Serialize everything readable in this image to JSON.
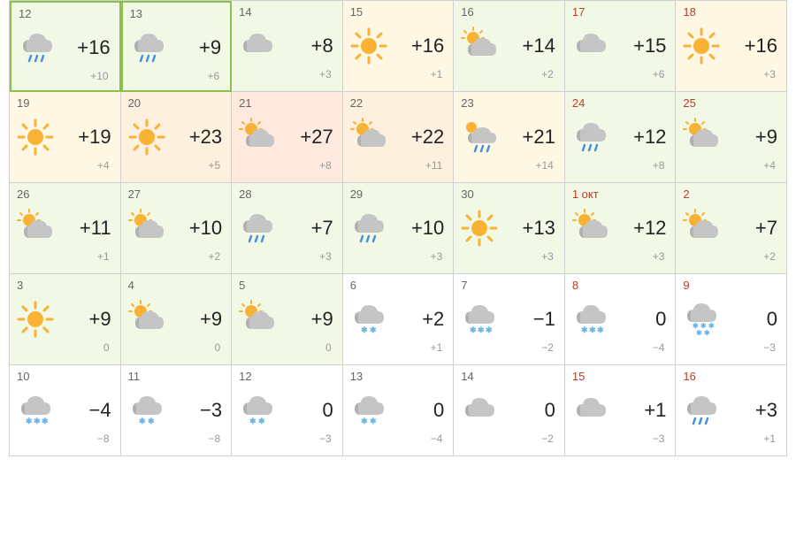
{
  "days": [
    {
      "date": "12",
      "weekend": false,
      "high": "+16",
      "low": "+10",
      "icon": "cloud-rain",
      "bg": "green",
      "today": true
    },
    {
      "date": "13",
      "weekend": false,
      "high": "+9",
      "low": "+6",
      "icon": "cloud-rain",
      "bg": "green",
      "today": true
    },
    {
      "date": "14",
      "weekend": false,
      "high": "+8",
      "low": "+3",
      "icon": "cloud",
      "bg": "green",
      "today": false
    },
    {
      "date": "15",
      "weekend": false,
      "high": "+16",
      "low": "+1",
      "icon": "sun",
      "bg": "yellow",
      "today": false
    },
    {
      "date": "16",
      "weekend": false,
      "high": "+14",
      "low": "+2",
      "icon": "partly",
      "bg": "green",
      "today": false
    },
    {
      "date": "17",
      "weekend": true,
      "high": "+15",
      "low": "+6",
      "icon": "cloud",
      "bg": "green",
      "today": false
    },
    {
      "date": "18",
      "weekend": true,
      "high": "+16",
      "low": "+3",
      "icon": "sun",
      "bg": "yellow",
      "today": false
    },
    {
      "date": "19",
      "weekend": false,
      "high": "+19",
      "low": "+4",
      "icon": "sun",
      "bg": "yellow",
      "today": false
    },
    {
      "date": "20",
      "weekend": false,
      "high": "+23",
      "low": "+5",
      "icon": "sun",
      "bg": "orange",
      "today": false
    },
    {
      "date": "21",
      "weekend": false,
      "high": "+27",
      "low": "+8",
      "icon": "partly",
      "bg": "red",
      "today": false
    },
    {
      "date": "22",
      "weekend": false,
      "high": "+22",
      "low": "+11",
      "icon": "partly",
      "bg": "orange",
      "today": false
    },
    {
      "date": "23",
      "weekend": false,
      "high": "+21",
      "low": "+14",
      "icon": "partly-rain",
      "bg": "yellow",
      "today": false
    },
    {
      "date": "24",
      "weekend": true,
      "high": "+12",
      "low": "+8",
      "icon": "cloud-rain",
      "bg": "green",
      "today": false
    },
    {
      "date": "25",
      "weekend": true,
      "high": "+9",
      "low": "+4",
      "icon": "partly",
      "bg": "green",
      "today": false
    },
    {
      "date": "26",
      "weekend": false,
      "high": "+11",
      "low": "+1",
      "icon": "partly",
      "bg": "green",
      "today": false
    },
    {
      "date": "27",
      "weekend": false,
      "high": "+10",
      "low": "+2",
      "icon": "partly",
      "bg": "green",
      "today": false
    },
    {
      "date": "28",
      "weekend": false,
      "high": "+7",
      "low": "+3",
      "icon": "cloud-rain",
      "bg": "green",
      "today": false
    },
    {
      "date": "29",
      "weekend": false,
      "high": "+10",
      "low": "+3",
      "icon": "cloud-rain",
      "bg": "green",
      "today": false
    },
    {
      "date": "30",
      "weekend": false,
      "high": "+13",
      "low": "+3",
      "icon": "sun",
      "bg": "green",
      "today": false
    },
    {
      "date": "1 окт",
      "weekend": true,
      "high": "+12",
      "low": "+3",
      "icon": "partly",
      "bg": "green",
      "today": false
    },
    {
      "date": "2",
      "weekend": true,
      "high": "+7",
      "low": "+2",
      "icon": "partly",
      "bg": "green",
      "today": false
    },
    {
      "date": "3",
      "weekend": false,
      "high": "+9",
      "low": "0",
      "icon": "sun",
      "bg": "green",
      "today": false
    },
    {
      "date": "4",
      "weekend": false,
      "high": "+9",
      "low": "0",
      "icon": "partly",
      "bg": "green",
      "today": false
    },
    {
      "date": "5",
      "weekend": false,
      "high": "+9",
      "low": "0",
      "icon": "partly",
      "bg": "green",
      "today": false
    },
    {
      "date": "6",
      "weekend": false,
      "high": "+2",
      "low": "+1",
      "icon": "cloud-sleet",
      "bg": "white",
      "today": false
    },
    {
      "date": "7",
      "weekend": false,
      "high": "−1",
      "low": "−2",
      "icon": "cloud-snow",
      "bg": "white",
      "today": false
    },
    {
      "date": "8",
      "weekend": true,
      "high": "0",
      "low": "−4",
      "icon": "cloud-snow",
      "bg": "white",
      "today": false
    },
    {
      "date": "9",
      "weekend": true,
      "high": "0",
      "low": "−3",
      "icon": "cloud-heavysnow",
      "bg": "white",
      "today": false
    },
    {
      "date": "10",
      "weekend": false,
      "high": "−4",
      "low": "−8",
      "icon": "cloud-snow",
      "bg": "white",
      "today": false
    },
    {
      "date": "11",
      "weekend": false,
      "high": "−3",
      "low": "−8",
      "icon": "cloud-sleet",
      "bg": "white",
      "today": false
    },
    {
      "date": "12",
      "weekend": false,
      "high": "0",
      "low": "−3",
      "icon": "cloud-sleet",
      "bg": "white",
      "today": false
    },
    {
      "date": "13",
      "weekend": false,
      "high": "0",
      "low": "−4",
      "icon": "cloud-sleet",
      "bg": "white",
      "today": false
    },
    {
      "date": "14",
      "weekend": false,
      "high": "0",
      "low": "−2",
      "icon": "cloud",
      "bg": "white",
      "today": false
    },
    {
      "date": "15",
      "weekend": true,
      "high": "+1",
      "low": "−3",
      "icon": "cloud",
      "bg": "white",
      "today": false
    },
    {
      "date": "16",
      "weekend": true,
      "high": "+3",
      "low": "+1",
      "icon": "cloud-rain",
      "bg": "white",
      "today": false
    }
  ],
  "icons": {
    "sun_color": "#f9b233",
    "cloud_color": "#c5c5c5",
    "cloud_dark": "#b0b0b0",
    "rain_color": "#4a90d9",
    "snow_color": "#6bb5e8"
  }
}
